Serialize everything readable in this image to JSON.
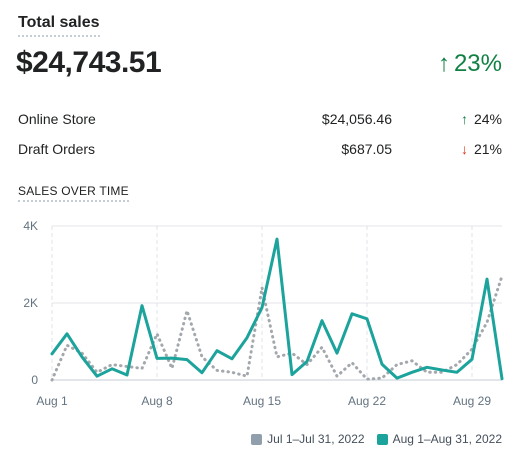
{
  "card": {
    "title": "Total sales",
    "total": "$24,743.51",
    "change": "23%",
    "change_arrow": "↑"
  },
  "breakdown": [
    {
      "name": "Online Store",
      "amount": "$24,056.46",
      "change": "24%",
      "arrow": "↑",
      "direction": "up"
    },
    {
      "name": "Draft Orders",
      "amount": "$687.05",
      "change": "21%",
      "arrow": "↓",
      "direction": "down"
    }
  ],
  "section": {
    "title": "SALES OVER TIME"
  },
  "legend": [
    {
      "label": "Jul 1–Jul 31, 2022",
      "color": "#919eab"
    },
    {
      "label": "Aug 1–Aug 31, 2022",
      "color": "#1ba39c"
    }
  ],
  "colors": {
    "up": "#108043",
    "down": "#de3618",
    "current": "#1ba39c",
    "previous": "#a3a8ad"
  },
  "chart_data": {
    "type": "line",
    "title": "SALES OVER TIME",
    "xlabel": "",
    "ylabel": "",
    "ylim": [
      0,
      4000
    ],
    "yticks": [
      {
        "value": 0,
        "label": "0"
      },
      {
        "value": 2000,
        "label": "2K"
      },
      {
        "value": 4000,
        "label": "4K"
      }
    ],
    "xticks": [
      {
        "day": 1,
        "label": "Aug 1"
      },
      {
        "day": 8,
        "label": "Aug 8"
      },
      {
        "day": 15,
        "label": "Aug 15"
      },
      {
        "day": 22,
        "label": "Aug 22"
      },
      {
        "day": 29,
        "label": "Aug 29"
      }
    ],
    "x": [
      1,
      2,
      3,
      4,
      5,
      6,
      7,
      8,
      9,
      10,
      11,
      12,
      13,
      14,
      15,
      16,
      17,
      18,
      19,
      20,
      21,
      22,
      23,
      24,
      25,
      26,
      27,
      28,
      29,
      30,
      31
    ],
    "grid": true,
    "legend_position": "bottom-right",
    "series": [
      {
        "name": "Aug 1–Aug 31, 2022",
        "style": "solid",
        "color": "#1ba39c",
        "values": [
          680,
          1200,
          600,
          100,
          290,
          130,
          1930,
          560,
          570,
          530,
          190,
          760,
          550,
          1100,
          1880,
          3660,
          140,
          480,
          1540,
          700,
          1720,
          1590,
          410,
          50,
          200,
          330,
          260,
          200,
          540,
          2620,
          30
        ]
      },
      {
        "name": "Jul 1–Jul 31, 2022",
        "style": "dotted",
        "color": "#a3a8ad",
        "values": [
          0,
          900,
          700,
          200,
          400,
          350,
          300,
          1200,
          300,
          1800,
          600,
          250,
          200,
          100,
          2400,
          600,
          700,
          400,
          850,
          100,
          450,
          20,
          50,
          400,
          500,
          200,
          200,
          400,
          800,
          1500,
          2700
        ]
      }
    ]
  }
}
